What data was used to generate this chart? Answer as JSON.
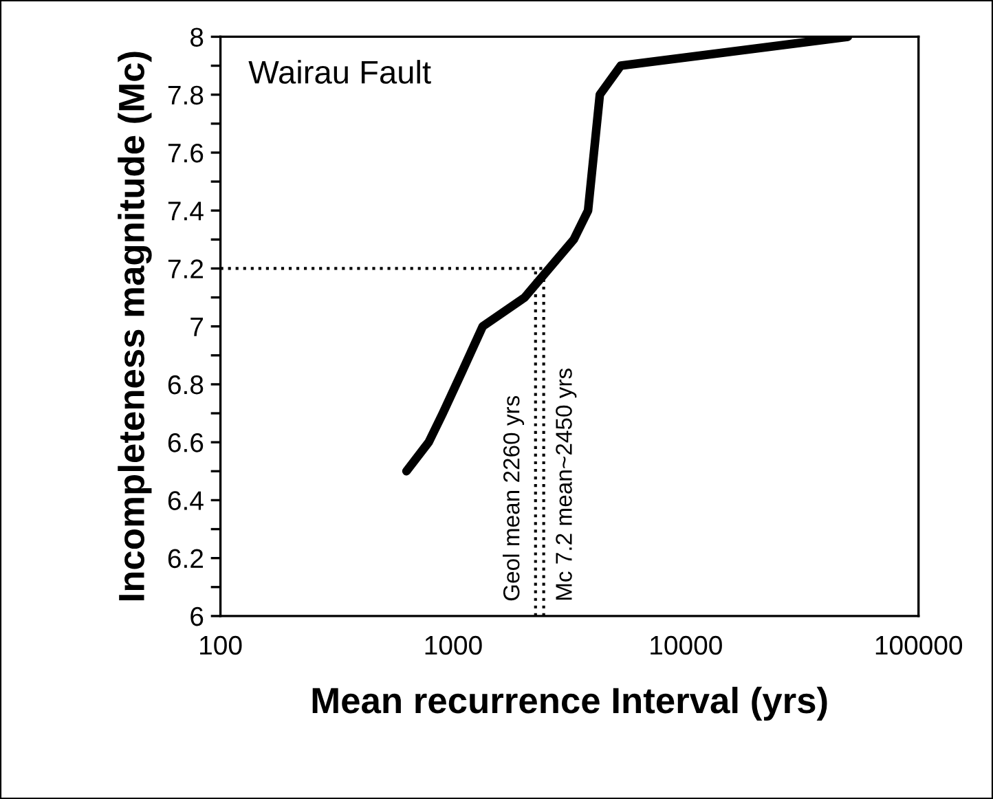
{
  "chart_data": {
    "type": "line",
    "xlabel": "Mean recurrence Interval (yrs)",
    "ylabel": "Incompleteness magnitude (Mc)",
    "log": "x",
    "xlim": [
      100,
      100000
    ],
    "xticks": [
      100,
      1000,
      10000,
      100000
    ],
    "ylim": [
      6,
      8
    ],
    "yticks": [
      6,
      {
        "value": 6.1,
        "label": null
      },
      6.2,
      {
        "value": 6.3,
        "label": null
      },
      6.4,
      {
        "value": 6.5,
        "label": null
      },
      6.6,
      {
        "value": 6.7,
        "label": null
      },
      6.8,
      {
        "value": 6.9,
        "label": null
      },
      7,
      {
        "value": 7.1,
        "label": null
      },
      7.2,
      {
        "value": 7.3,
        "label": null
      },
      7.4,
      {
        "value": 7.5,
        "label": null
      },
      7.6,
      {
        "value": 7.7,
        "label": null
      },
      7.8,
      {
        "value": 7.9,
        "label": null
      },
      8
    ],
    "grid": false,
    "marker": "none",
    "series": [
      {
        "color": "#000000",
        "line_style": "solid",
        "x": [
          630,
          785,
          903,
          1087,
          1340,
          2030,
          3300,
          3800,
          4270,
          5250,
          49700
        ],
        "values": [
          6.5,
          6.6,
          6.7,
          6.84,
          7.0,
          7.1,
          7.3,
          7.4,
          7.8,
          7.9,
          8.0
        ]
      },
      {
        "color": "#000000",
        "line_style": "dotted",
        "x": [
          100,
          2450
        ],
        "values": [
          7.2,
          7.2
        ]
      },
      {
        "color": "#000000",
        "line_style": "dotted",
        "x": [
          2260,
          2260
        ],
        "values": [
          6,
          7.2
        ]
      },
      {
        "color": "#000000",
        "line_style": "dotted",
        "x": [
          2450,
          2450
        ],
        "values": [
          6,
          7.2
        ]
      }
    ],
    "annotations": [
      "Wairau Fault",
      {
        "text": "Geol mean 2260 yrs",
        "x": 2260,
        "y": 6.05
      },
      {
        "text": "Mc 7.2 mean~2450 yrs",
        "x": 2450,
        "y": 6.05
      }
    ]
  }
}
